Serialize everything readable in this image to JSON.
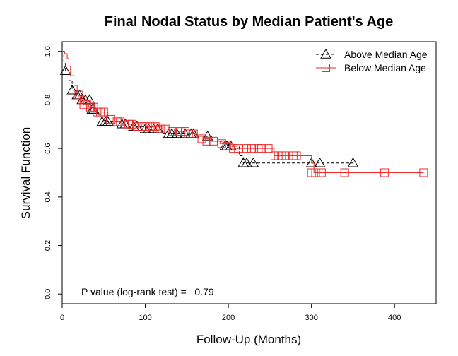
{
  "chart_data": {
    "type": "line",
    "title": "Final Nodal Status by Median Patient's Age",
    "xlabel": "Follow-Up (Months)",
    "ylabel": "Survival Function",
    "xlim": [
      0,
      450
    ],
    "ylim": [
      -0.04,
      1.04
    ],
    "xticks": [
      0,
      100,
      200,
      300,
      400
    ],
    "yticks": [
      0.0,
      0.2,
      0.4,
      0.6,
      0.8,
      1.0
    ],
    "xtick_labels": [
      "0",
      "100",
      "200",
      "300",
      "400"
    ],
    "ytick_labels": [
      "0.0",
      "0.2",
      "0.4",
      "0.6",
      "0.8",
      "1.0"
    ],
    "grid": false,
    "legend_position": "top-right",
    "annotation": "P value (log-rank test) =   0.79",
    "series": [
      {
        "name": "Above Median Age",
        "color": "#000000",
        "line_style": "dashed",
        "marker": "triangle",
        "steps": [
          [
            0,
            1.0
          ],
          [
            2,
            0.96
          ],
          [
            4,
            0.92
          ],
          [
            8,
            0.88
          ],
          [
            12,
            0.84
          ],
          [
            16,
            0.82
          ],
          [
            22,
            0.8
          ],
          [
            28,
            0.78
          ],
          [
            34,
            0.76
          ],
          [
            42,
            0.74
          ],
          [
            48,
            0.71
          ],
          [
            60,
            0.71
          ],
          [
            72,
            0.7
          ],
          [
            85,
            0.69
          ],
          [
            100,
            0.68
          ],
          [
            120,
            0.66
          ],
          [
            140,
            0.66
          ],
          [
            160,
            0.65
          ],
          [
            180,
            0.63
          ],
          [
            200,
            0.61
          ],
          [
            213,
            0.57
          ],
          [
            218,
            0.54
          ],
          [
            350,
            0.54
          ]
        ],
        "censored": [
          [
            4,
            0.92
          ],
          [
            12,
            0.84
          ],
          [
            18,
            0.82
          ],
          [
            21,
            0.82
          ],
          [
            24,
            0.8
          ],
          [
            28,
            0.8
          ],
          [
            33,
            0.8
          ],
          [
            36,
            0.76
          ],
          [
            38,
            0.76
          ],
          [
            48,
            0.71
          ],
          [
            52,
            0.71
          ],
          [
            55,
            0.71
          ],
          [
            72,
            0.7
          ],
          [
            76,
            0.7
          ],
          [
            86,
            0.69
          ],
          [
            90,
            0.69
          ],
          [
            100,
            0.68
          ],
          [
            104,
            0.68
          ],
          [
            110,
            0.68
          ],
          [
            115,
            0.68
          ],
          [
            128,
            0.66
          ],
          [
            132,
            0.66
          ],
          [
            138,
            0.66
          ],
          [
            148,
            0.66
          ],
          [
            155,
            0.66
          ],
          [
            158,
            0.66
          ],
          [
            175,
            0.65
          ],
          [
            196,
            0.61
          ],
          [
            198,
            0.61
          ],
          [
            203,
            0.61
          ],
          [
            218,
            0.54
          ],
          [
            222,
            0.54
          ],
          [
            230,
            0.54
          ],
          [
            300,
            0.54
          ],
          [
            310,
            0.54
          ],
          [
            350,
            0.54
          ]
        ]
      },
      {
        "name": "Below Median Age",
        "color": "#ee2a2a",
        "line_style": "solid",
        "marker": "square",
        "steps": [
          [
            0,
            1.0
          ],
          [
            3,
            0.99
          ],
          [
            6,
            0.97
          ],
          [
            8,
            0.94
          ],
          [
            10,
            0.9
          ],
          [
            14,
            0.86
          ],
          [
            18,
            0.82
          ],
          [
            22,
            0.79
          ],
          [
            26,
            0.78
          ],
          [
            32,
            0.77
          ],
          [
            40,
            0.75
          ],
          [
            55,
            0.73
          ],
          [
            66,
            0.71
          ],
          [
            80,
            0.7
          ],
          [
            100,
            0.69
          ],
          [
            120,
            0.68
          ],
          [
            135,
            0.67
          ],
          [
            150,
            0.66
          ],
          [
            160,
            0.65
          ],
          [
            170,
            0.64
          ],
          [
            180,
            0.63
          ],
          [
            190,
            0.62
          ],
          [
            205,
            0.6
          ],
          [
            255,
            0.57
          ],
          [
            300,
            0.54
          ],
          [
            303,
            0.5
          ],
          [
            435,
            0.5
          ]
        ],
        "censored": [
          [
            20,
            0.82
          ],
          [
            24,
            0.8
          ],
          [
            26,
            0.78
          ],
          [
            30,
            0.78
          ],
          [
            34,
            0.77
          ],
          [
            38,
            0.77
          ],
          [
            42,
            0.75
          ],
          [
            46,
            0.75
          ],
          [
            50,
            0.75
          ],
          [
            58,
            0.72
          ],
          [
            66,
            0.71
          ],
          [
            70,
            0.71
          ],
          [
            80,
            0.7
          ],
          [
            84,
            0.7
          ],
          [
            90,
            0.69
          ],
          [
            96,
            0.69
          ],
          [
            100,
            0.69
          ],
          [
            106,
            0.69
          ],
          [
            112,
            0.69
          ],
          [
            118,
            0.68
          ],
          [
            124,
            0.68
          ],
          [
            132,
            0.67
          ],
          [
            142,
            0.67
          ],
          [
            148,
            0.67
          ],
          [
            152,
            0.66
          ],
          [
            158,
            0.66
          ],
          [
            168,
            0.64
          ],
          [
            174,
            0.63
          ],
          [
            182,
            0.63
          ],
          [
            192,
            0.62
          ],
          [
            198,
            0.61
          ],
          [
            206,
            0.6
          ],
          [
            212,
            0.6
          ],
          [
            222,
            0.6
          ],
          [
            228,
            0.6
          ],
          [
            236,
            0.6
          ],
          [
            240,
            0.6
          ],
          [
            248,
            0.6
          ],
          [
            256,
            0.57
          ],
          [
            260,
            0.57
          ],
          [
            264,
            0.57
          ],
          [
            268,
            0.57
          ],
          [
            278,
            0.57
          ],
          [
            282,
            0.57
          ],
          [
            300,
            0.5
          ],
          [
            305,
            0.5
          ],
          [
            312,
            0.5
          ],
          [
            340,
            0.5
          ],
          [
            388,
            0.5
          ],
          [
            435,
            0.5
          ]
        ]
      }
    ]
  }
}
